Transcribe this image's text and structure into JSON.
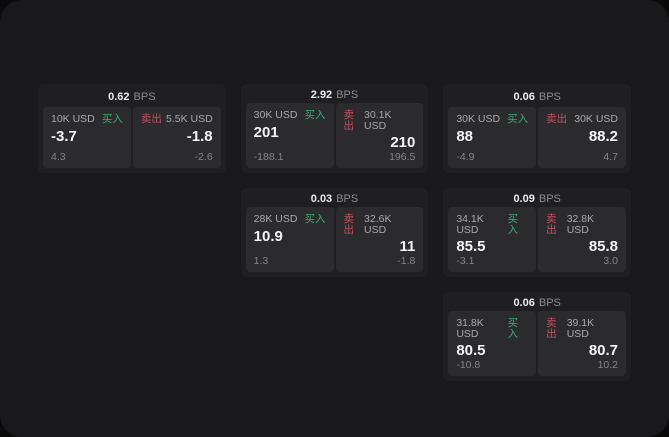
{
  "ui": {
    "bps_unit": "BPS",
    "buy_label": "买入",
    "sell_label": "卖出",
    "colors": {
      "screen_bg": "#19191b",
      "card_bg": "#1f1f21",
      "panel_bg": "#2b2b2d",
      "buy_green": "#3aac71",
      "sell_red": "#c14f60"
    }
  },
  "cards": [
    {
      "bps": "0.62",
      "buy": {
        "amount": "10K USD",
        "price": "-3.7",
        "change": "4.3"
      },
      "sell": {
        "amount": "5.5K USD",
        "price": "-1.8",
        "change": "-2.6"
      }
    },
    {
      "bps": "2.92",
      "buy": {
        "amount": "30K USD",
        "price": "201",
        "change": "-188.1"
      },
      "sell": {
        "amount": "30.1K USD",
        "price": "210",
        "change": "196.5"
      }
    },
    {
      "bps": "0.06",
      "buy": {
        "amount": "30K USD",
        "price": "88",
        "change": "-4.9"
      },
      "sell": {
        "amount": "30K USD",
        "price": "88.2",
        "change": "4.7"
      }
    },
    {
      "bps": "0.03",
      "buy": {
        "amount": "28K USD",
        "price": "10.9",
        "change": "1.3"
      },
      "sell": {
        "amount": "32.6K USD",
        "price": "11",
        "change": "-1.8"
      }
    },
    {
      "bps": "0.09",
      "buy": {
        "amount": "34.1K USD",
        "price": "85.5",
        "change": "-3.1"
      },
      "sell": {
        "amount": "32.8K USD",
        "price": "85.8",
        "change": "3.0"
      }
    },
    {
      "bps": "0.06",
      "buy": {
        "amount": "31.8K USD",
        "price": "80.5",
        "change": "-10.8"
      },
      "sell": {
        "amount": "39.1K USD",
        "price": "80.7",
        "change": "10.2"
      }
    }
  ]
}
